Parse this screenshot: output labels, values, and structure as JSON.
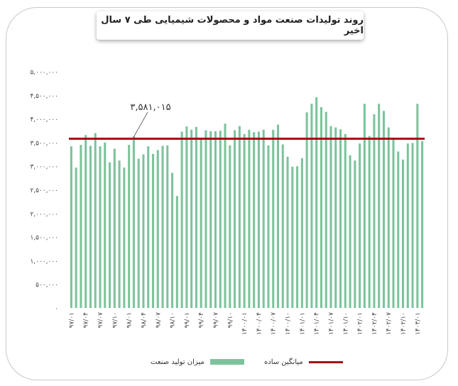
{
  "chart_data": {
    "type": "bar",
    "title": "روند تولیدات صنعت مواد و محصولات شیمیایی طی ۷ سال اخیر",
    "yticks": [
      "۵,۰۰۰,۰۰۰",
      "۴,۵۰۰,۰۰۰",
      "۴,۰۰۰,۰۰۰",
      "۳,۵۰۰,۰۰۰",
      "۳,۰۰۰,۰۰۰",
      "۲,۵۰۰,۰۰۰",
      "۲,۰۰۰,۰۰۰",
      "۱,۵۰۰,۰۰۰",
      "۱,۰۰۰,۰۰۰",
      "۵۰۰,۰۰۰",
      "۰"
    ],
    "ylim": [
      0,
      5000000
    ],
    "xticks": [
      "۹۷/۰۱",
      "۹۷/۰۴",
      "۹۷/۰۷",
      "۹۷/۱۰",
      "۹۸/۰۱",
      "۹۸/۰۴",
      "۹۸/۰۷",
      "۹۸/۱۰",
      "۹۹/۰۱",
      "۹۹/۰۴",
      "۹۹/۰۷",
      "۹۹/۱۰",
      "۱۴۰۰/۰۱",
      "۱۴۰۰/۰۴",
      "۱۴۰۰/۰۷",
      "۱۴۰۰/۱۰",
      "۱۴۰۱/۰۱",
      "۱۴۰۱/۰۴",
      "۱۴۰۱/۰۷",
      "۱۴۰۱/۱۰",
      "۱۴۰۲/۰۱",
      "۱۴۰۲/۰۴",
      "۱۴۰۲/۰۷",
      "۱۴۰۲/۱۰",
      "۱۴۰۳/۰۱"
    ],
    "series": [
      {
        "name": "میزان تولید صنعت",
        "color": "#7cc39b",
        "values": [
          3420000,
          2970000,
          3450000,
          3660000,
          3430000,
          3700000,
          3420000,
          3500000,
          3080000,
          3370000,
          3120000,
          2970000,
          3450000,
          3630000,
          3160000,
          3250000,
          3420000,
          3260000,
          3340000,
          3430000,
          3440000,
          2860000,
          2370000,
          3730000,
          3840000,
          3770000,
          3830000,
          3600000,
          3760000,
          3740000,
          3740000,
          3750000,
          3900000,
          3440000,
          3760000,
          3850000,
          3680000,
          3770000,
          3720000,
          3730000,
          3770000,
          3440000,
          3770000,
          3880000,
          3460000,
          3200000,
          2990000,
          3000000,
          3170000,
          4140000,
          4320000,
          4460000,
          4250000,
          4150000,
          3850000,
          3820000,
          3780000,
          3680000,
          3230000,
          3120000,
          3480000,
          4320000,
          3640000,
          4100000,
          4320000,
          4170000,
          3820000,
          3590000,
          3310000,
          3140000,
          3480000,
          3490000,
          4320000,
          3530000
        ]
      },
      {
        "name": "میانگین ساده",
        "color": "#a80d18",
        "value": 3581015
      }
    ],
    "annotation": "۳,۵۸۱,۰۱۵",
    "grid": false,
    "legend": "bottom"
  }
}
